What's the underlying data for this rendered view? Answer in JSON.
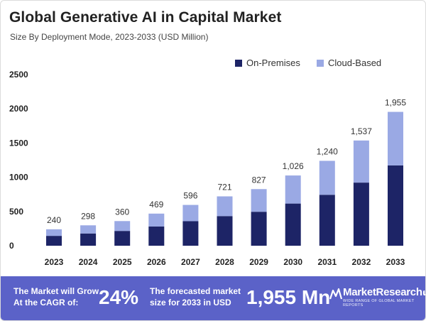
{
  "header": {
    "title": "Global Generative AI in Capital Market",
    "subtitle": "Size By Deployment Mode, 2023-2033 (USD Million)"
  },
  "colors": {
    "on_premises": "#1d2466",
    "cloud_based": "#9aa9e4",
    "footer_bg": "#5b62c8"
  },
  "chart_data": {
    "type": "bar",
    "stacked": true,
    "title": "Global Generative AI in Capital Market",
    "subtitle": "Size By Deployment Mode, 2023-2033 (USD Million)",
    "xlabel": "",
    "ylabel": "",
    "ylim": [
      0,
      2500
    ],
    "yticks": [
      0,
      500,
      1000,
      1500,
      2000,
      2500
    ],
    "categories": [
      "2023",
      "2024",
      "2025",
      "2026",
      "2027",
      "2028",
      "2029",
      "2030",
      "2031",
      "2032",
      "2033"
    ],
    "totals": [
      240,
      298,
      360,
      469,
      596,
      721,
      827,
      1026,
      1240,
      1537,
      1955
    ],
    "total_labels": [
      "240",
      "298",
      "360",
      "469",
      "596",
      "721",
      "827",
      "1,026",
      "1,240",
      "1,537",
      "1,955"
    ],
    "series": [
      {
        "name": "On-Premises",
        "values": [
          144,
          179,
          216,
          281,
          358,
          433,
          496,
          616,
          744,
          922,
          1173
        ]
      },
      {
        "name": "Cloud-Based",
        "values": [
          96,
          119,
          144,
          188,
          238,
          288,
          331,
          410,
          496,
          615,
          782
        ]
      }
    ],
    "legend_position": "top-right"
  },
  "footer": {
    "cagr_text_line1": "The Market will Grow",
    "cagr_text_line2": "At the CAGR of:",
    "cagr_value": "24%",
    "forecast_text_line1": "The forecasted market",
    "forecast_text_line2": "size for 2033 in USD",
    "forecast_value": "1,955 Mn",
    "brand_name": "MarketResearch",
    "brand_badge": "biz",
    "brand_tagline": "WIDE RANGE OF GLOBAL MARKET REPORTS"
  }
}
